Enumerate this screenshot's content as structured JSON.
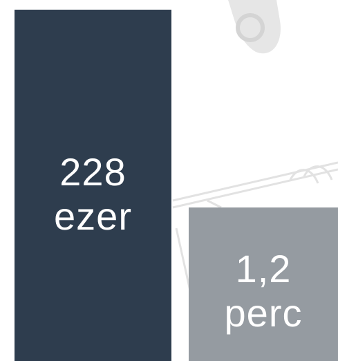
{
  "blocks": [
    {
      "value": "228",
      "unit": "ezer"
    },
    {
      "value": "1,2",
      "unit": "perc"
    }
  ]
}
